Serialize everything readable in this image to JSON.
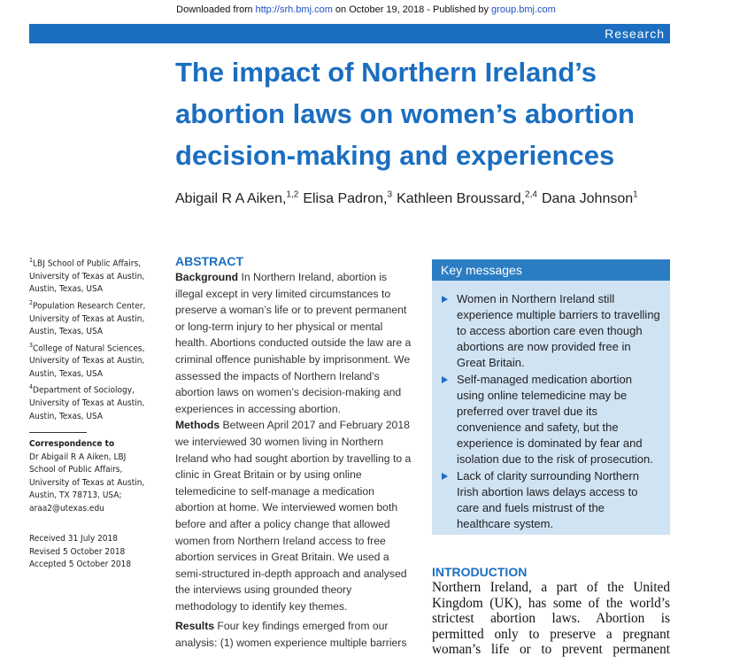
{
  "download_bar": {
    "prefix": "Downloaded from ",
    "url": "http://srh.bmj.com",
    "middle": " on October 19, 2018 - Published by ",
    "publisher": "group.bmj.com"
  },
  "section_label": "Research",
  "title": "The impact of Northern Ireland’s abortion laws on women’s abortion decision-making and experiences",
  "authors": [
    {
      "name": "Abigail R A Aiken,",
      "affil": "1,2"
    },
    {
      "name": "Elisa Padron,",
      "affil": "3"
    },
    {
      "name": "Kathleen Broussard,",
      "affil": "2,4"
    },
    {
      "name": "Dana Johnson",
      "affil": "1"
    }
  ],
  "affiliations": [
    {
      "num": "1",
      "text": "LBJ School of Public Affairs, University of Texas at Austin, Austin, Texas, USA"
    },
    {
      "num": "2",
      "text": "Population Research Center, University of Texas at Austin, Austin, Texas, USA"
    },
    {
      "num": "3",
      "text": "College of Natural Sciences, University of Texas at Austin, Austin, Texas, USA"
    },
    {
      "num": "4",
      "text": "Department of Sociology, University of Texas at Austin, Austin, Texas, USA"
    }
  ],
  "correspondence": {
    "heading": "Correspondence to",
    "text": "Dr Abigail R A Aiken, LBJ School of Public Affairs, University of Texas at Austin, Austin, TX 78713, USA; araa2@utexas.edu"
  },
  "dates": [
    "Received 31 July 2018",
    "Revised 5 October 2018",
    "Accepted 5 October 2018"
  ],
  "abstract": {
    "heading": "ABSTRACT",
    "paragraphs": [
      {
        "label": "Background",
        "text": "In Northern Ireland, abortion is illegal except in very limited circumstances to preserve a woman’s life or to prevent permanent or long-term injury to her physical or mental health. Abortions conducted outside the law are a criminal offence punishable by imprisonment. We assessed the impacts of Northern Ireland’s abortion laws on women’s decision-making and experiences in accessing abortion."
      },
      {
        "label": "Methods",
        "text": "Between April 2017 and February 2018 we interviewed 30 women living in Northern Ireland who had sought abortion by travelling to a clinic in Great Britain or by using online telemedicine to self-manage a medication abortion at home. We interviewed women both before and after a policy change that allowed women from Northern Ireland access to free abortion services in Great Britain. We used a semi-structured in-depth approach and analysed the interviews using grounded theory methodology to identify key themes."
      },
      {
        "label": "Results",
        "text": "Four key findings emerged from our analysis: (1) women experience multiple barriers"
      }
    ]
  },
  "key_messages": {
    "heading": "Key messages",
    "items": [
      "Women in Northern Ireland still experience multiple barriers to travelling to access abortion care even though abortions are now provided free in Great Britain.",
      "Self-managed medication abortion using online telemedicine may be preferred over travel due its convenience and safety, but the experience is dominated by fear and isolation due to the risk of prosecution.",
      "Lack of clarity surrounding Northern Irish abortion laws delays access to care and fuels mistrust of the healthcare system."
    ]
  },
  "introduction": {
    "heading": "INTRODUCTION",
    "text": "Northern Ireland, a part of the United Kingdom (UK), has some of the world’s strictest abortion laws. Abortion is permitted only to preserve a pregnant woman’s life or to prevent permanent"
  }
}
